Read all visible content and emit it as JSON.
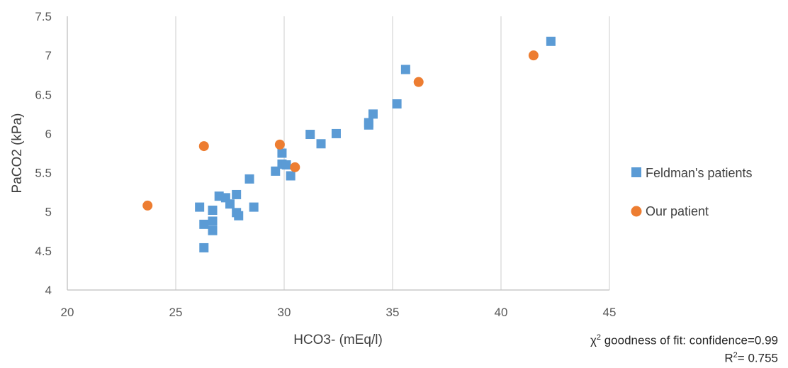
{
  "chart_data": {
    "type": "scatter",
    "xlabel": "HCO3- (mEq/l)",
    "ylabel": "PaCO2 (kPa)",
    "xlim": [
      20,
      45
    ],
    "ylim": [
      4,
      7.5
    ],
    "xticks": [
      "20",
      "25",
      "30",
      "35",
      "40",
      "45"
    ],
    "yticks": [
      "4",
      "4.5",
      "5",
      "5.5",
      "6",
      "6.5",
      "7",
      "7.5"
    ],
    "grid": "vertical",
    "legend_position": "right",
    "series": [
      {
        "name": "Feldman's patients",
        "marker": "square",
        "color": "#5B9BD5",
        "points": [
          {
            "x": 26.1,
            "y": 5.06
          },
          {
            "x": 26.3,
            "y": 4.84
          },
          {
            "x": 26.3,
            "y": 4.54
          },
          {
            "x": 26.7,
            "y": 5.02
          },
          {
            "x": 26.7,
            "y": 4.88
          },
          {
            "x": 26.7,
            "y": 4.76
          },
          {
            "x": 27.0,
            "y": 5.2
          },
          {
            "x": 27.3,
            "y": 5.18
          },
          {
            "x": 27.5,
            "y": 5.1
          },
          {
            "x": 27.8,
            "y": 5.22
          },
          {
            "x": 27.8,
            "y": 4.99
          },
          {
            "x": 27.9,
            "y": 4.95
          },
          {
            "x": 28.4,
            "y": 5.42
          },
          {
            "x": 28.6,
            "y": 5.06
          },
          {
            "x": 29.6,
            "y": 5.52
          },
          {
            "x": 29.9,
            "y": 5.75
          },
          {
            "x": 29.9,
            "y": 5.61
          },
          {
            "x": 30.1,
            "y": 5.6
          },
          {
            "x": 30.3,
            "y": 5.46
          },
          {
            "x": 31.2,
            "y": 5.99
          },
          {
            "x": 31.7,
            "y": 5.87
          },
          {
            "x": 32.4,
            "y": 6.0
          },
          {
            "x": 33.9,
            "y": 6.14
          },
          {
            "x": 33.9,
            "y": 6.11
          },
          {
            "x": 34.1,
            "y": 6.25
          },
          {
            "x": 35.2,
            "y": 6.38
          },
          {
            "x": 35.6,
            "y": 6.82
          },
          {
            "x": 42.3,
            "y": 7.18
          }
        ]
      },
      {
        "name": "Our patient",
        "marker": "circle",
        "color": "#ED7D31",
        "points": [
          {
            "x": 23.7,
            "y": 5.08
          },
          {
            "x": 26.3,
            "y": 5.84
          },
          {
            "x": 29.8,
            "y": 5.86
          },
          {
            "x": 30.5,
            "y": 5.57
          },
          {
            "x": 36.2,
            "y": 6.66
          },
          {
            "x": 41.5,
            "y": 7.0
          }
        ]
      }
    ],
    "annotations": {
      "chi_prefix": "χ",
      "chi_exp": "2",
      "chi_text": " goodness of fit: confidence=0.99",
      "r_prefix": "R",
      "r_exp": "2",
      "r_text": "= 0.755"
    }
  }
}
